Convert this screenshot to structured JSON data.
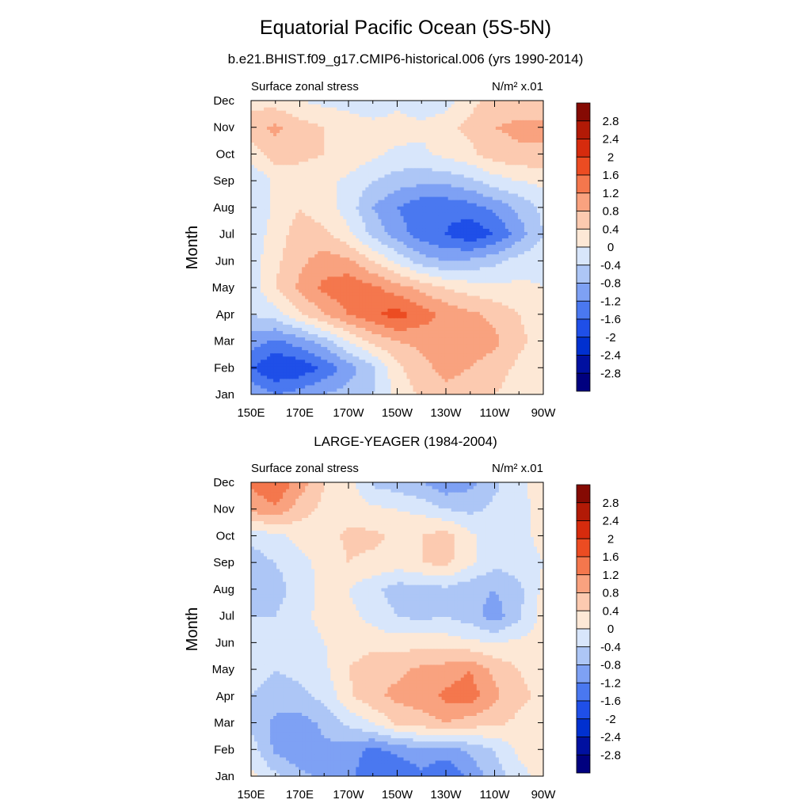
{
  "page": {
    "title": "Equatorial Pacific Ocean (5S-5N)"
  },
  "colors": {
    "palette": [
      "#00007f",
      "#0010a0",
      "#0030d0",
      "#1f4fe8",
      "#4a78f0",
      "#7ea1f4",
      "#adc6f6",
      "#d8e6fb",
      "#fde8d6",
      "#fccab0",
      "#f9a27f",
      "#f4774d",
      "#ec4c22",
      "#d62b0d",
      "#b21a06",
      "#850a03"
    ]
  },
  "colorbar": {
    "labels": [
      "2.8",
      "2.4",
      "2",
      "1.6",
      "1.2",
      "0.8",
      "0.4",
      "0",
      "-0.4",
      "-0.8",
      "-1.2",
      "-1.6",
      "-2",
      "-2.4",
      "-2.8"
    ]
  },
  "chart_data": [
    {
      "type": "heatmap",
      "title": "b.e21.BHIST.f09_g17.CMIP6-historical.006 (yrs 1990-2014)",
      "left_string": "Surface zonal stress",
      "right_string": "N/m² x.01",
      "ylabel": "Month",
      "x_ticks": [
        "150E",
        "170E",
        "170W",
        "150W",
        "130W",
        "110W",
        "90W"
      ],
      "y_ticks": [
        "Jan",
        "Feb",
        "Mar",
        "Apr",
        "May",
        "Jun",
        "Jul",
        "Aug",
        "Sep",
        "Oct",
        "Nov",
        "Dec"
      ],
      "x_range_lon_east": [
        150,
        270
      ],
      "levels": [
        -2.8,
        -2.4,
        -2,
        -1.6,
        -1.2,
        -0.8,
        -0.4,
        0,
        0.4,
        0.8,
        1.2,
        1.6,
        2,
        2.4,
        2.8
      ],
      "grid_lon_east": [
        150,
        160,
        170,
        180,
        190,
        200,
        210,
        220,
        230,
        240,
        250,
        260,
        270
      ],
      "grid_months": [
        "Jan",
        "Feb",
        "Mar",
        "Apr",
        "May",
        "Jun",
        "Jul",
        "Aug",
        "Sep",
        "Oct",
        "Nov",
        "Dec"
      ],
      "values": [
        [
          -0.8,
          -1.2,
          -1.0,
          -0.8,
          -0.6,
          -0.4,
          0.1,
          0.5,
          0.7,
          0.6,
          0.4,
          0.2,
          0.1
        ],
        [
          -1.6,
          -2.0,
          -1.9,
          -1.5,
          -1.0,
          -0.5,
          0.3,
          0.7,
          0.9,
          0.8,
          0.6,
          0.3,
          0.1
        ],
        [
          -1.0,
          -1.3,
          -1.0,
          -0.6,
          0.0,
          0.5,
          0.8,
          0.9,
          1.0,
          1.0,
          0.9,
          0.5,
          0.2
        ],
        [
          -0.4,
          -0.2,
          0.3,
          0.8,
          1.2,
          1.5,
          1.8,
          1.4,
          1.1,
          0.9,
          0.7,
          0.4,
          0.2
        ],
        [
          -0.2,
          0.4,
          0.9,
          1.3,
          1.5,
          1.3,
          1.0,
          0.7,
          0.4,
          0.2,
          0.1,
          0.1,
          0.0
        ],
        [
          -0.2,
          0.3,
          0.7,
          1.0,
          0.9,
          0.4,
          -0.1,
          -0.6,
          -0.8,
          -0.7,
          -0.5,
          -0.2,
          -0.1
        ],
        [
          -0.3,
          0.2,
          0.6,
          0.5,
          0.1,
          -0.5,
          -1.0,
          -1.4,
          -1.6,
          -1.9,
          -1.6,
          -1.0,
          -0.4
        ],
        [
          -0.4,
          0.1,
          0.4,
          0.2,
          -0.2,
          -0.8,
          -1.2,
          -1.5,
          -1.5,
          -1.4,
          -1.1,
          -0.7,
          -0.3
        ],
        [
          -0.4,
          0.1,
          0.2,
          0.1,
          -0.1,
          -0.4,
          -0.6,
          -0.7,
          -0.7,
          -0.5,
          -0.2,
          0.0,
          0.1
        ],
        [
          0.2,
          0.6,
          0.5,
          0.4,
          0.3,
          0.1,
          -0.1,
          -0.1,
          0.1,
          0.3,
          0.6,
          0.7,
          0.7
        ],
        [
          0.6,
          0.9,
          0.6,
          0.4,
          0.3,
          0.2,
          0.2,
          0.1,
          0.3,
          0.5,
          0.8,
          0.9,
          0.9
        ],
        [
          0.3,
          0.2,
          0.0,
          -0.1,
          -0.2,
          -0.4,
          -0.1,
          -0.3,
          -0.2,
          0.3,
          0.5,
          0.6,
          0.6
        ]
      ]
    },
    {
      "type": "heatmap",
      "title": "LARGE-YEAGER (1984-2004)",
      "left_string": "Surface zonal stress",
      "right_string": "N/m² x.01",
      "ylabel": "Month",
      "x_ticks": [
        "150E",
        "170E",
        "170W",
        "150W",
        "130W",
        "110W",
        "90W"
      ],
      "y_ticks": [
        "Jan",
        "Feb",
        "Mar",
        "Apr",
        "May",
        "Jun",
        "Jul",
        "Aug",
        "Sep",
        "Oct",
        "Nov",
        "Dec"
      ],
      "x_range_lon_east": [
        150,
        270
      ],
      "levels": [
        -2.8,
        -2.4,
        -2,
        -1.6,
        -1.2,
        -0.8,
        -0.4,
        0,
        0.4,
        0.8,
        1.2,
        1.6,
        2,
        2.4,
        2.8
      ],
      "grid_lon_east": [
        150,
        160,
        170,
        180,
        190,
        200,
        210,
        220,
        230,
        240,
        250,
        260,
        270
      ],
      "grid_months": [
        "Jan",
        "Feb",
        "Mar",
        "Apr",
        "May",
        "Jun",
        "Jul",
        "Aug",
        "Sep",
        "Oct",
        "Nov",
        "Dec"
      ],
      "values": [
        [
          0.1,
          -0.3,
          -0.7,
          -0.9,
          -1.1,
          -1.5,
          -1.6,
          -1.3,
          -1.6,
          -1.1,
          -0.6,
          -0.2,
          0.2
        ],
        [
          -0.2,
          -0.9,
          -1.1,
          -0.9,
          -1.0,
          -1.3,
          -1.1,
          -0.9,
          -1.0,
          -0.7,
          -0.4,
          0.1,
          0.3
        ],
        [
          -0.5,
          -0.9,
          -1.0,
          -0.7,
          -0.3,
          0.0,
          0.5,
          0.6,
          0.8,
          0.6,
          0.5,
          0.3,
          0.3
        ],
        [
          -0.4,
          -0.6,
          -0.5,
          -0.3,
          0.3,
          0.7,
          0.9,
          1.0,
          1.3,
          1.4,
          0.9,
          0.5,
          0.3
        ],
        [
          -0.2,
          -0.4,
          -0.3,
          -0.1,
          0.4,
          0.8,
          0.7,
          0.9,
          1.0,
          1.2,
          0.7,
          0.4,
          0.2
        ],
        [
          -0.2,
          -0.3,
          -0.2,
          0.0,
          0.1,
          0.2,
          0.2,
          0.3,
          0.2,
          0.1,
          0.0,
          0.1,
          0.1
        ],
        [
          -0.4,
          -0.4,
          -0.1,
          0.1,
          0.1,
          -0.1,
          -0.4,
          -0.5,
          -0.4,
          -0.6,
          -1.0,
          -0.5,
          0.2
        ],
        [
          -0.8,
          -0.6,
          -0.2,
          0.1,
          0.0,
          -0.3,
          -0.6,
          -0.6,
          -0.5,
          -0.7,
          -0.8,
          -0.5,
          0.1
        ],
        [
          -0.6,
          -0.4,
          -0.1,
          0.1,
          0.4,
          0.3,
          0.2,
          0.4,
          0.5,
          0.1,
          -0.3,
          -0.2,
          0.0
        ],
        [
          -0.3,
          -0.1,
          0.1,
          0.2,
          0.5,
          0.5,
          0.3,
          0.4,
          0.6,
          0.1,
          -0.2,
          -0.1,
          0.1
        ],
        [
          0.9,
          1.1,
          0.6,
          0.3,
          0.2,
          0.1,
          0.0,
          -0.1,
          -0.4,
          -0.5,
          -0.3,
          -0.1,
          0.1
        ],
        [
          1.3,
          1.6,
          1.0,
          0.4,
          0.2,
          -0.5,
          -0.6,
          -0.8,
          -1.1,
          -0.9,
          -0.5,
          -0.1,
          0.2
        ]
      ]
    }
  ]
}
